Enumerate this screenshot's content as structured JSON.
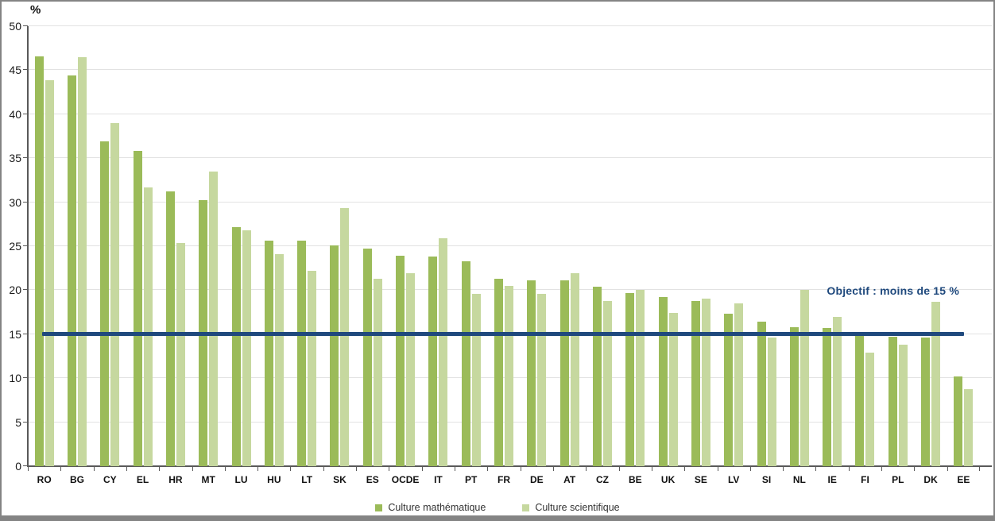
{
  "chart_data": {
    "type": "bar",
    "title": "",
    "unit_label": "%",
    "categories": [
      "RO",
      "BG",
      "CY",
      "EL",
      "HR",
      "MT",
      "LU",
      "HU",
      "LT",
      "SK",
      "ES",
      "OCDE",
      "IT",
      "PT",
      "FR",
      "DE",
      "AT",
      "CZ",
      "BE",
      "UK",
      "SE",
      "LV",
      "SI",
      "NL",
      "IE",
      "FI",
      "PL",
      "DK",
      "EE"
    ],
    "series": [
      {
        "name": "Culture mathématique",
        "color": "#9BBB59",
        "values": [
          46.6,
          44.4,
          36.9,
          35.8,
          31.2,
          30.2,
          27.2,
          25.6,
          25.6,
          25.1,
          24.7,
          23.9,
          23.8,
          23.3,
          21.3,
          21.1,
          21.1,
          20.4,
          19.7,
          19.2,
          18.8,
          17.3,
          16.4,
          15.8,
          15.7,
          15.0,
          14.7,
          14.6,
          10.2
        ]
      },
      {
        "name": "Culture scientifique",
        "color": "#C6D89F",
        "values": [
          43.9,
          46.5,
          39.0,
          31.7,
          25.4,
          33.5,
          26.8,
          24.1,
          22.2,
          29.3,
          21.3,
          21.9,
          25.9,
          19.6,
          20.5,
          19.6,
          21.9,
          18.8,
          20.0,
          17.4,
          19.0,
          18.5,
          14.6,
          20.0,
          17.0,
          12.9,
          13.8,
          18.7,
          8.8
        ]
      }
    ],
    "y_axis": {
      "min": 0,
      "max": 50,
      "tick_step": 5,
      "tick_labels": [
        "0",
        "5",
        "10",
        "15",
        "20",
        "25",
        "30",
        "35",
        "40",
        "45",
        "50"
      ]
    },
    "reference_line": {
      "value": 15,
      "label": "Objectif : moins de 15 %",
      "color": "#1F497D"
    },
    "legend_position": "bottom",
    "grid": true,
    "ylim": [
      0,
      50
    ]
  }
}
